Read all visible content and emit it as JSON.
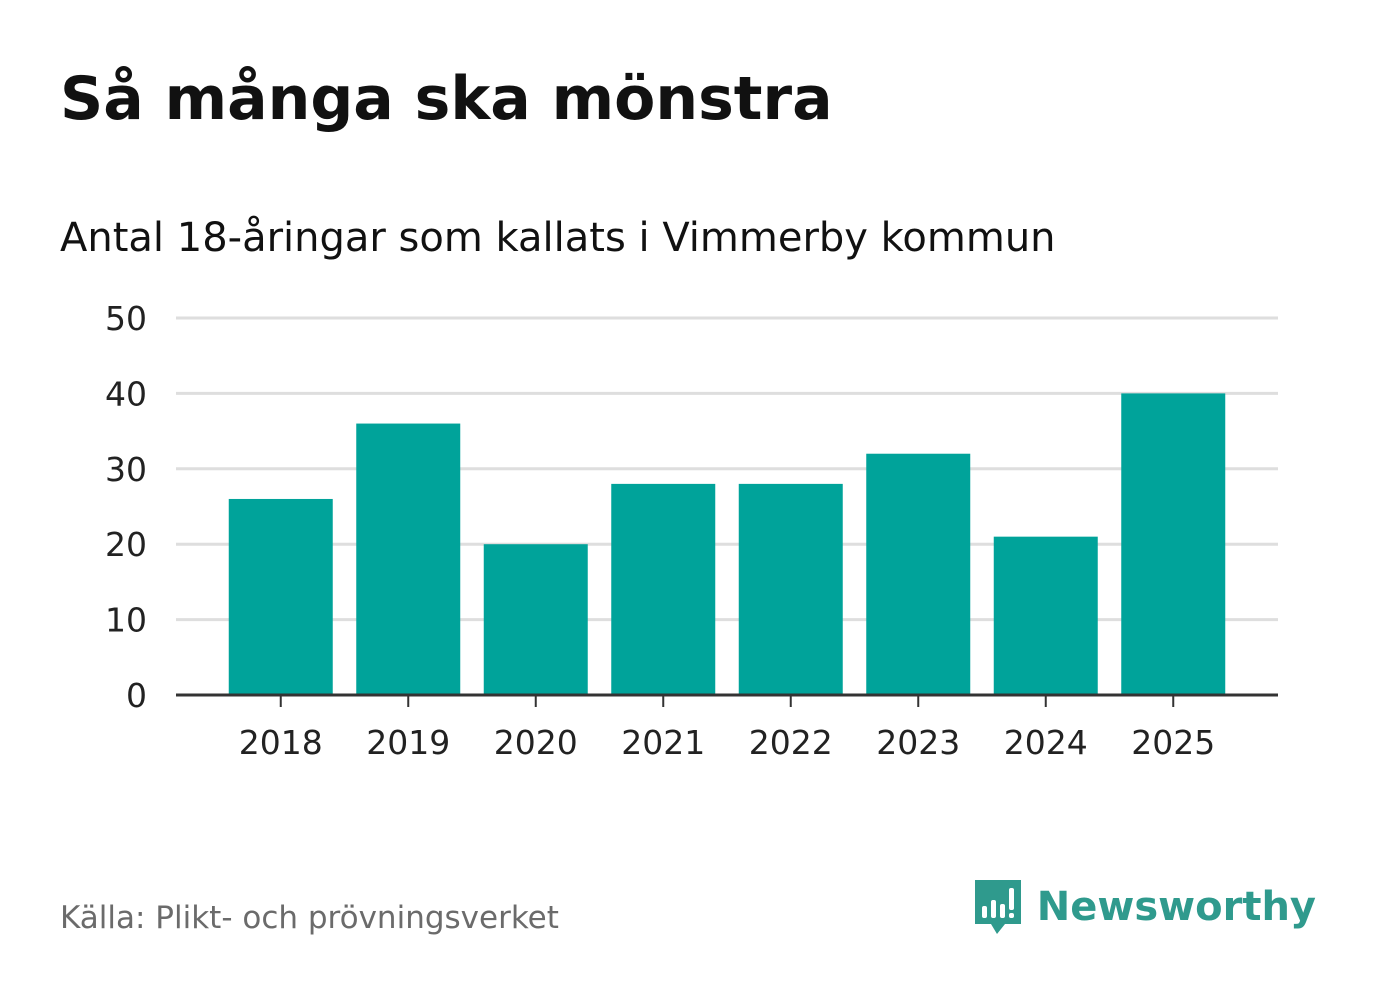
{
  "title": "Så många ska mönstra",
  "subtitle": "Antal 18-åringar som kallats i Vimmerby kommun",
  "source": "Källa: Plikt- och prövningsverket",
  "brand": {
    "name": "Newsworthy",
    "icon": "newsworthy-logo-icon",
    "color": "#2f9a8d"
  },
  "colors": {
    "bar": "#00a39a",
    "grid": "#dedede",
    "axis": "#333333",
    "text": "#222222"
  },
  "chart_data": {
    "type": "bar",
    "title": "Så många ska mönstra",
    "subtitle": "Antal 18-åringar som kallats i Vimmerby kommun",
    "categories": [
      "2018",
      "2019",
      "2020",
      "2021",
      "2022",
      "2023",
      "2024",
      "2025"
    ],
    "values": [
      26,
      36,
      20,
      28,
      28,
      32,
      21,
      40
    ],
    "xlabel": "",
    "ylabel": "",
    "ylim": [
      0,
      50
    ],
    "yticks": [
      0,
      10,
      20,
      30,
      40,
      50
    ],
    "grid": true,
    "legend": "none"
  }
}
